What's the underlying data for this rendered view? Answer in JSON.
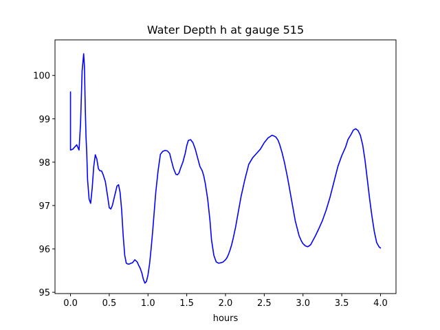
{
  "chart_data": {
    "type": "line",
    "title": "Water Depth h at gauge 515",
    "xlabel": "hours",
    "ylabel": "",
    "xlim": [
      -0.2,
      4.2
    ],
    "ylim": [
      94.97,
      100.82
    ],
    "xticks": [
      0.0,
      0.5,
      1.0,
      1.5,
      2.0,
      2.5,
      3.0,
      3.5,
      4.0
    ],
    "xtick_labels": [
      "0.0",
      "0.5",
      "1.0",
      "1.5",
      "2.0",
      "2.5",
      "3.0",
      "3.5",
      "4.0"
    ],
    "yticks": [
      95,
      96,
      97,
      98,
      99,
      100
    ],
    "ytick_labels": [
      "95",
      "96",
      "97",
      "98",
      "99",
      "100"
    ],
    "grid": false,
    "series": [
      {
        "color": "#0000ff",
        "x": [
          0.0,
          0.0,
          0.03,
          0.06,
          0.08,
          0.11,
          0.13,
          0.15,
          0.17,
          0.18,
          0.19,
          0.2,
          0.21,
          0.22,
          0.24,
          0.26,
          0.28,
          0.3,
          0.32,
          0.34,
          0.36,
          0.38,
          0.4,
          0.42,
          0.45,
          0.48,
          0.5,
          0.52,
          0.54,
          0.56,
          0.58,
          0.6,
          0.62,
          0.64,
          0.66,
          0.68,
          0.7,
          0.72,
          0.74,
          0.76,
          0.78,
          0.8,
          0.83,
          0.86,
          0.88,
          0.9,
          0.92,
          0.94,
          0.96,
          0.98,
          1.0,
          1.02,
          1.04,
          1.06,
          1.08,
          1.1,
          1.13,
          1.16,
          1.19,
          1.22,
          1.25,
          1.28,
          1.3,
          1.33,
          1.36,
          1.38,
          1.4,
          1.42,
          1.45,
          1.48,
          1.5,
          1.52,
          1.55,
          1.58,
          1.61,
          1.64,
          1.67,
          1.7,
          1.72,
          1.74,
          1.77,
          1.8,
          1.82,
          1.85,
          1.88,
          1.91,
          1.94,
          1.97,
          2.0,
          2.02,
          2.04,
          2.06,
          2.08,
          2.1,
          2.13,
          2.16,
          2.2,
          2.25,
          2.3,
          2.35,
          2.4,
          2.45,
          2.5,
          2.55,
          2.6,
          2.63,
          2.65,
          2.68,
          2.7,
          2.73,
          2.76,
          2.8,
          2.85,
          2.9,
          2.95,
          2.98,
          3.0,
          3.03,
          3.06,
          3.08,
          3.1,
          3.13,
          3.16,
          3.2,
          3.25,
          3.3,
          3.35,
          3.4,
          3.45,
          3.5,
          3.55,
          3.58,
          3.62,
          3.65,
          3.68,
          3.71,
          3.74,
          3.77,
          3.8,
          3.83,
          3.86,
          3.89,
          3.92,
          3.95,
          3.98,
          4.0
        ],
        "y": [
          99.62,
          98.28,
          98.3,
          98.36,
          98.4,
          98.28,
          98.9,
          100.1,
          100.5,
          100.2,
          99.3,
          98.6,
          98.2,
          97.6,
          97.15,
          97.05,
          97.4,
          97.9,
          98.17,
          98.07,
          97.85,
          97.8,
          97.8,
          97.72,
          97.55,
          97.2,
          96.95,
          96.92,
          97.0,
          97.15,
          97.3,
          97.45,
          97.48,
          97.3,
          96.9,
          96.3,
          95.85,
          95.67,
          95.65,
          95.65,
          95.67,
          95.68,
          95.75,
          95.7,
          95.62,
          95.55,
          95.45,
          95.3,
          95.21,
          95.25,
          95.4,
          95.65,
          96.0,
          96.4,
          96.85,
          97.3,
          97.8,
          98.18,
          98.25,
          98.27,
          98.26,
          98.2,
          98.05,
          97.85,
          97.72,
          97.71,
          97.75,
          97.86,
          98.0,
          98.2,
          98.38,
          98.5,
          98.52,
          98.45,
          98.3,
          98.1,
          97.9,
          97.8,
          97.68,
          97.5,
          97.15,
          96.65,
          96.2,
          95.85,
          95.7,
          95.67,
          95.68,
          95.7,
          95.75,
          95.8,
          95.88,
          95.98,
          96.1,
          96.25,
          96.5,
          96.8,
          97.2,
          97.6,
          97.95,
          98.1,
          98.2,
          98.3,
          98.45,
          98.56,
          98.62,
          98.6,
          98.58,
          98.5,
          98.4,
          98.22,
          98.0,
          97.65,
          97.15,
          96.65,
          96.3,
          96.18,
          96.12,
          96.07,
          96.05,
          96.07,
          96.1,
          96.2,
          96.3,
          96.45,
          96.65,
          96.9,
          97.2,
          97.55,
          97.9,
          98.15,
          98.35,
          98.52,
          98.64,
          98.74,
          98.77,
          98.73,
          98.62,
          98.4,
          98.05,
          97.6,
          97.15,
          96.75,
          96.4,
          96.15,
          96.05,
          96.02
        ]
      }
    ]
  }
}
